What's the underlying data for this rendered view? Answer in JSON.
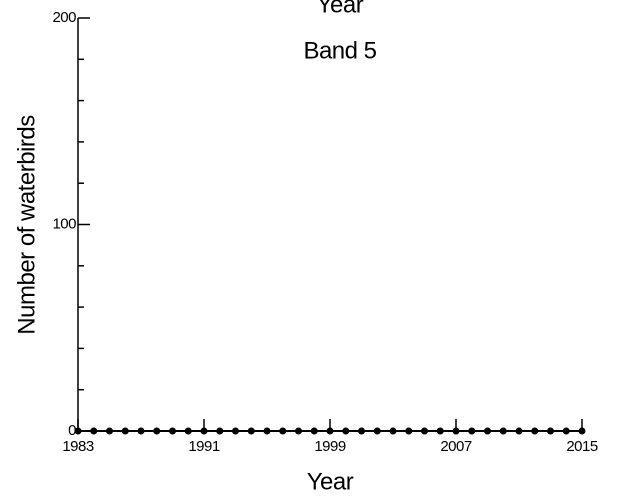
{
  "chart_data": {
    "type": "line",
    "top_label": "Year",
    "title": "Band 5",
    "x_label": "Year",
    "y_label": "Number of waterbirds",
    "x": [
      1983,
      1984,
      1985,
      1986,
      1987,
      1988,
      1989,
      1990,
      1991,
      1992,
      1993,
      1994,
      1995,
      1996,
      1997,
      1998,
      1999,
      2000,
      2001,
      2002,
      2003,
      2004,
      2005,
      2006,
      2007,
      2008,
      2009,
      2010,
      2011,
      2012,
      2013,
      2014,
      2015
    ],
    "series": [
      {
        "color": "#000000",
        "values": [
          0,
          0,
          0,
          0,
          0,
          0,
          0,
          0,
          0,
          0,
          0,
          0,
          0,
          0,
          0,
          0,
          0,
          0,
          0,
          0,
          0,
          0,
          0,
          0,
          0,
          0,
          0,
          0,
          0,
          0,
          0,
          0,
          0
        ]
      }
    ],
    "xlim": [
      1983,
      2015
    ],
    "xticks": [
      1983,
      1991,
      1999,
      2007,
      2015
    ],
    "ylim": [
      0,
      200
    ],
    "yticks": [
      0,
      100,
      200
    ],
    "yminorticks": [
      20,
      40,
      60,
      80,
      120,
      140,
      160,
      180
    ],
    "grid": false
  }
}
